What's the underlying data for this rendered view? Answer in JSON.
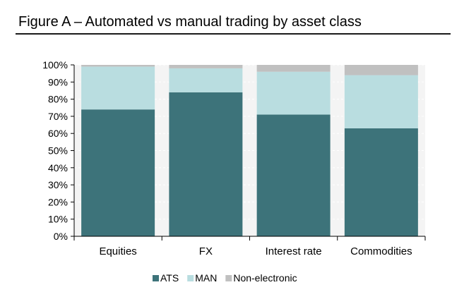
{
  "title": "Figure A – Automated vs manual trading by asset class",
  "colors": {
    "ATS": "#3d737a",
    "MAN": "#b9dde0",
    "Non-electronic": "#c0c0c0",
    "axis": "#000000",
    "grid": "#ffffff"
  },
  "chart_data": {
    "type": "bar",
    "stacked": true,
    "categories": [
      "Equities",
      "FX",
      "Interest rate",
      "Commodities"
    ],
    "series": [
      {
        "name": "ATS",
        "values": [
          74,
          84,
          71,
          63
        ]
      },
      {
        "name": "MAN",
        "values": [
          25,
          14,
          25,
          31
        ]
      },
      {
        "name": "Non-electronic",
        "values": [
          1,
          2,
          4,
          6
        ]
      }
    ],
    "yticks": [
      "0%",
      "10%",
      "20%",
      "30%",
      "40%",
      "50%",
      "60%",
      "70%",
      "80%",
      "90%",
      "100%"
    ],
    "ylim": [
      0,
      100
    ],
    "grid": true,
    "legend_position": "bottom"
  }
}
